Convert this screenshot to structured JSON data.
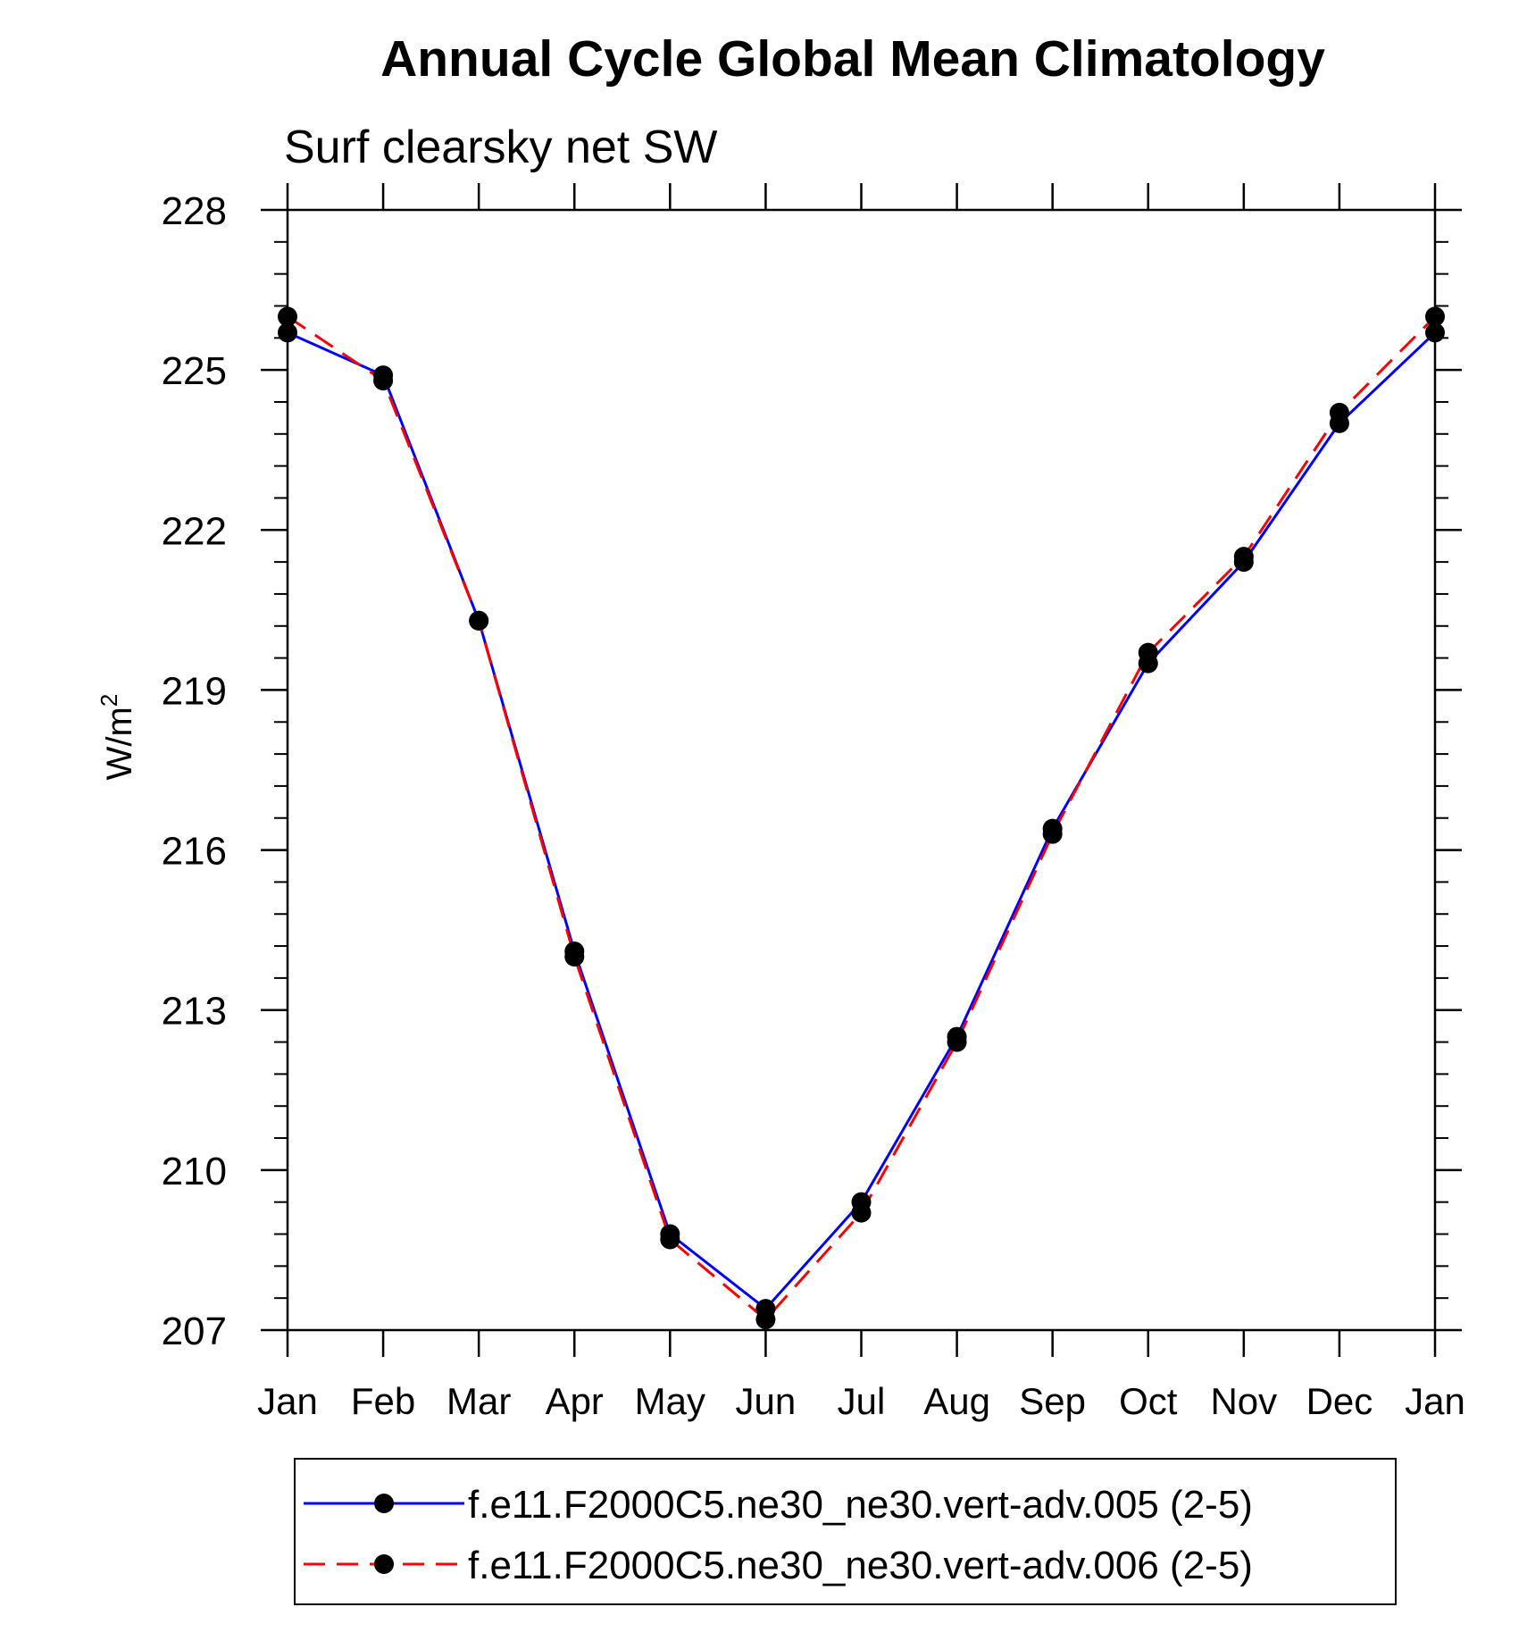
{
  "chart_data": {
    "type": "line",
    "title": "Annual Cycle Global Mean Climatology",
    "subtitle": "Surf clearsky net SW",
    "ylabel": "W/m",
    "ylabel_sup": "2",
    "xlabel": "",
    "categories": [
      "Jan",
      "Feb",
      "Mar",
      "Apr",
      "May",
      "Jun",
      "Jul",
      "Aug",
      "Sep",
      "Oct",
      "Nov",
      "Dec",
      "Jan"
    ],
    "ylim": [
      207,
      228
    ],
    "yticks": [
      "207",
      "210",
      "213",
      "216",
      "219",
      "222",
      "225",
      "228"
    ],
    "grid": false,
    "legend_position": "bottom",
    "series": [
      {
        "name": "f.e11.F2000C5.ne30_ne30.vert-adv.005 (2-5)",
        "color": "#0000ff",
        "style": "solid",
        "values": [
          225.7,
          224.9,
          220.3,
          214.1,
          208.8,
          207.4,
          209.4,
          212.5,
          216.4,
          219.5,
          221.4,
          224.0,
          225.7
        ]
      },
      {
        "name": "f.e11.F2000C5.ne30_ne30.vert-adv.006 (2-5)",
        "color": "#ff0000",
        "style": "dashed",
        "values": [
          226.0,
          224.8,
          220.3,
          214.0,
          208.7,
          207.2,
          209.2,
          212.4,
          216.3,
          219.7,
          221.5,
          224.2,
          226.0
        ]
      }
    ]
  }
}
